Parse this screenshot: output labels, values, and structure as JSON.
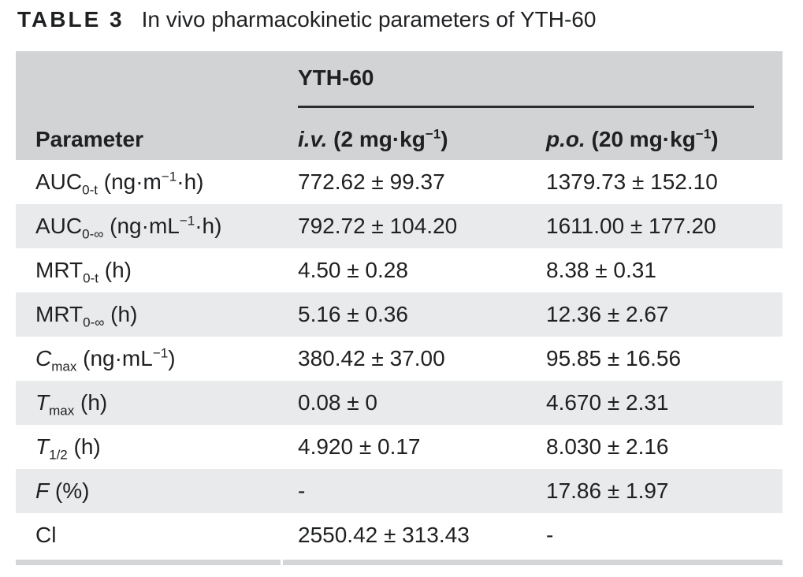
{
  "caption": {
    "label": "TABLE 3",
    "text": "In vivo pharmacokinetic parameters of YTH-60"
  },
  "table": {
    "group_header": "YTH-60",
    "col_param": "Parameter",
    "col_iv": {
      "abbr": "i.v.",
      "pre": " (2 mg·kg",
      "sup": "−1",
      "post": ")"
    },
    "col_po": {
      "abbr": "p.o.",
      "pre": " (20 mg·kg",
      "sup": "−1",
      "post": ")"
    },
    "rows": [
      {
        "base": "AUC",
        "sub": "0-t",
        "u1": " (ng·m",
        "sup": "−1",
        "u2": "·h)",
        "iv": "772.62 ± 99.37",
        "po": "1379.73 ± 152.10"
      },
      {
        "base": "AUC",
        "sub": "0-∞",
        "u1": " (ng·mL",
        "sup": "−1",
        "u2": "·h)",
        "iv": "792.72 ± 104.20",
        "po": "1611.00 ± 177.20"
      },
      {
        "base": "MRT",
        "sub": "0-t",
        "u1": " (h)",
        "sup": "",
        "u2": "",
        "iv": "4.50 ± 0.28",
        "po": "8.38 ± 0.31"
      },
      {
        "base": "MRT",
        "sub": "0-∞",
        "u1": " (h)",
        "sup": "",
        "u2": "",
        "iv": "5.16 ± 0.36",
        "po": "12.36 ± 2.67"
      },
      {
        "base": "C",
        "sub": "max",
        "u1": " (ng·mL",
        "sup": "−1",
        "u2": ")",
        "iv": "380.42 ± 37.00",
        "po": "95.85 ± 16.56"
      },
      {
        "base": "T",
        "sub": "max",
        "u1": " (h)",
        "sup": "",
        "u2": "",
        "iv": "0.08 ± 0",
        "po": "4.670 ± 2.31"
      },
      {
        "base": "T",
        "sub": "1/2",
        "u1": " (h)",
        "sup": "",
        "u2": "",
        "iv": "4.920 ± 0.17",
        "po": "8.030 ± 2.16"
      },
      {
        "base": "F",
        "sub": "",
        "u1": " (%)",
        "sup": "",
        "u2": "",
        "iv": "-",
        "po": "17.86 ± 1.97"
      },
      {
        "base": "Cl",
        "sub": "",
        "u1": "",
        "sup": "",
        "u2": "",
        "iv": "2550.42 ± 313.43",
        "po": "-"
      }
    ]
  },
  "colors": {
    "header_band": "#d2d3d5",
    "row_stripe": "#e9eaeb",
    "bottom_bar": "#d3d5d7",
    "group_rule": "#2b2d2f",
    "text": "#1f2022",
    "background": "#ffffff"
  }
}
